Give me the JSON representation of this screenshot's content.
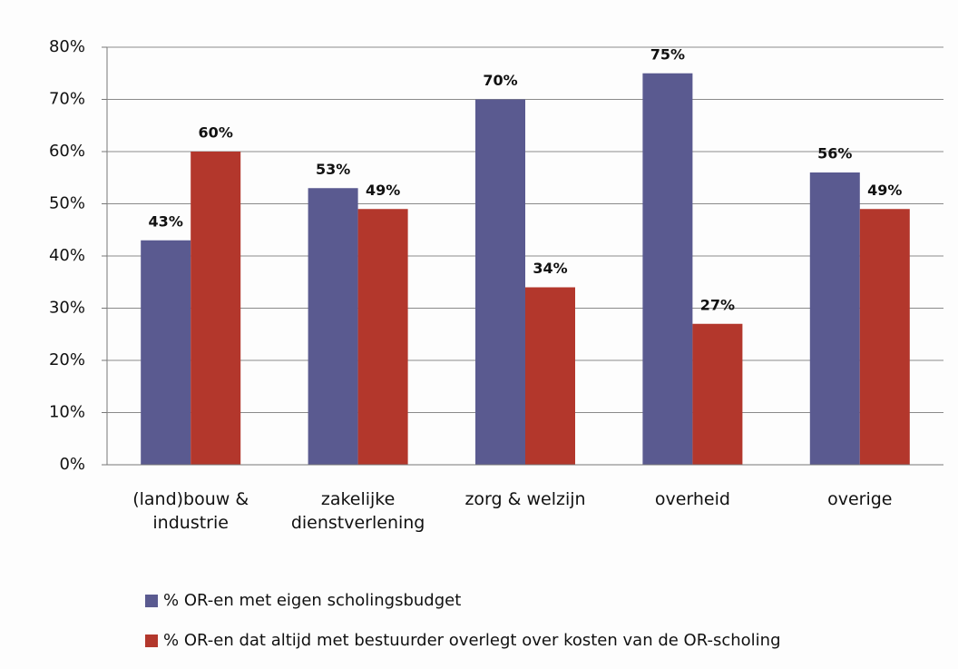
{
  "chart_data": {
    "type": "bar",
    "categories": [
      "(land)bouw & industrie",
      "zakelijke dienstverlening",
      "zorg & welzijn",
      "overheid",
      "overige"
    ],
    "series": [
      {
        "name": "% OR-en met eigen scholingsbudget",
        "color": "#5a5a90",
        "values": [
          43,
          53,
          70,
          75,
          56
        ],
        "value_labels": [
          "43%",
          "53%",
          "70%",
          "75%",
          "56%"
        ]
      },
      {
        "name": "% OR-en dat altijd met bestuurder overlegt over kosten van de OR-scholing",
        "color": "#b3372c",
        "values": [
          60,
          49,
          34,
          27,
          49
        ],
        "value_labels": [
          "60%",
          "49%",
          "34%",
          "27%",
          "49%"
        ]
      }
    ],
    "ylim": [
      0,
      80
    ],
    "yticks": [
      {
        "value": 0,
        "label": "0%"
      },
      {
        "value": 10,
        "label": "10%"
      },
      {
        "value": 20,
        "label": "20%"
      },
      {
        "value": 30,
        "label": "30%"
      },
      {
        "value": 40,
        "label": "40%"
      },
      {
        "value": 50,
        "label": "50%"
      },
      {
        "value": 60,
        "label": "60%"
      },
      {
        "value": 70,
        "label": "70%"
      },
      {
        "value": 80,
        "label": "80%"
      }
    ],
    "grid": true
  }
}
